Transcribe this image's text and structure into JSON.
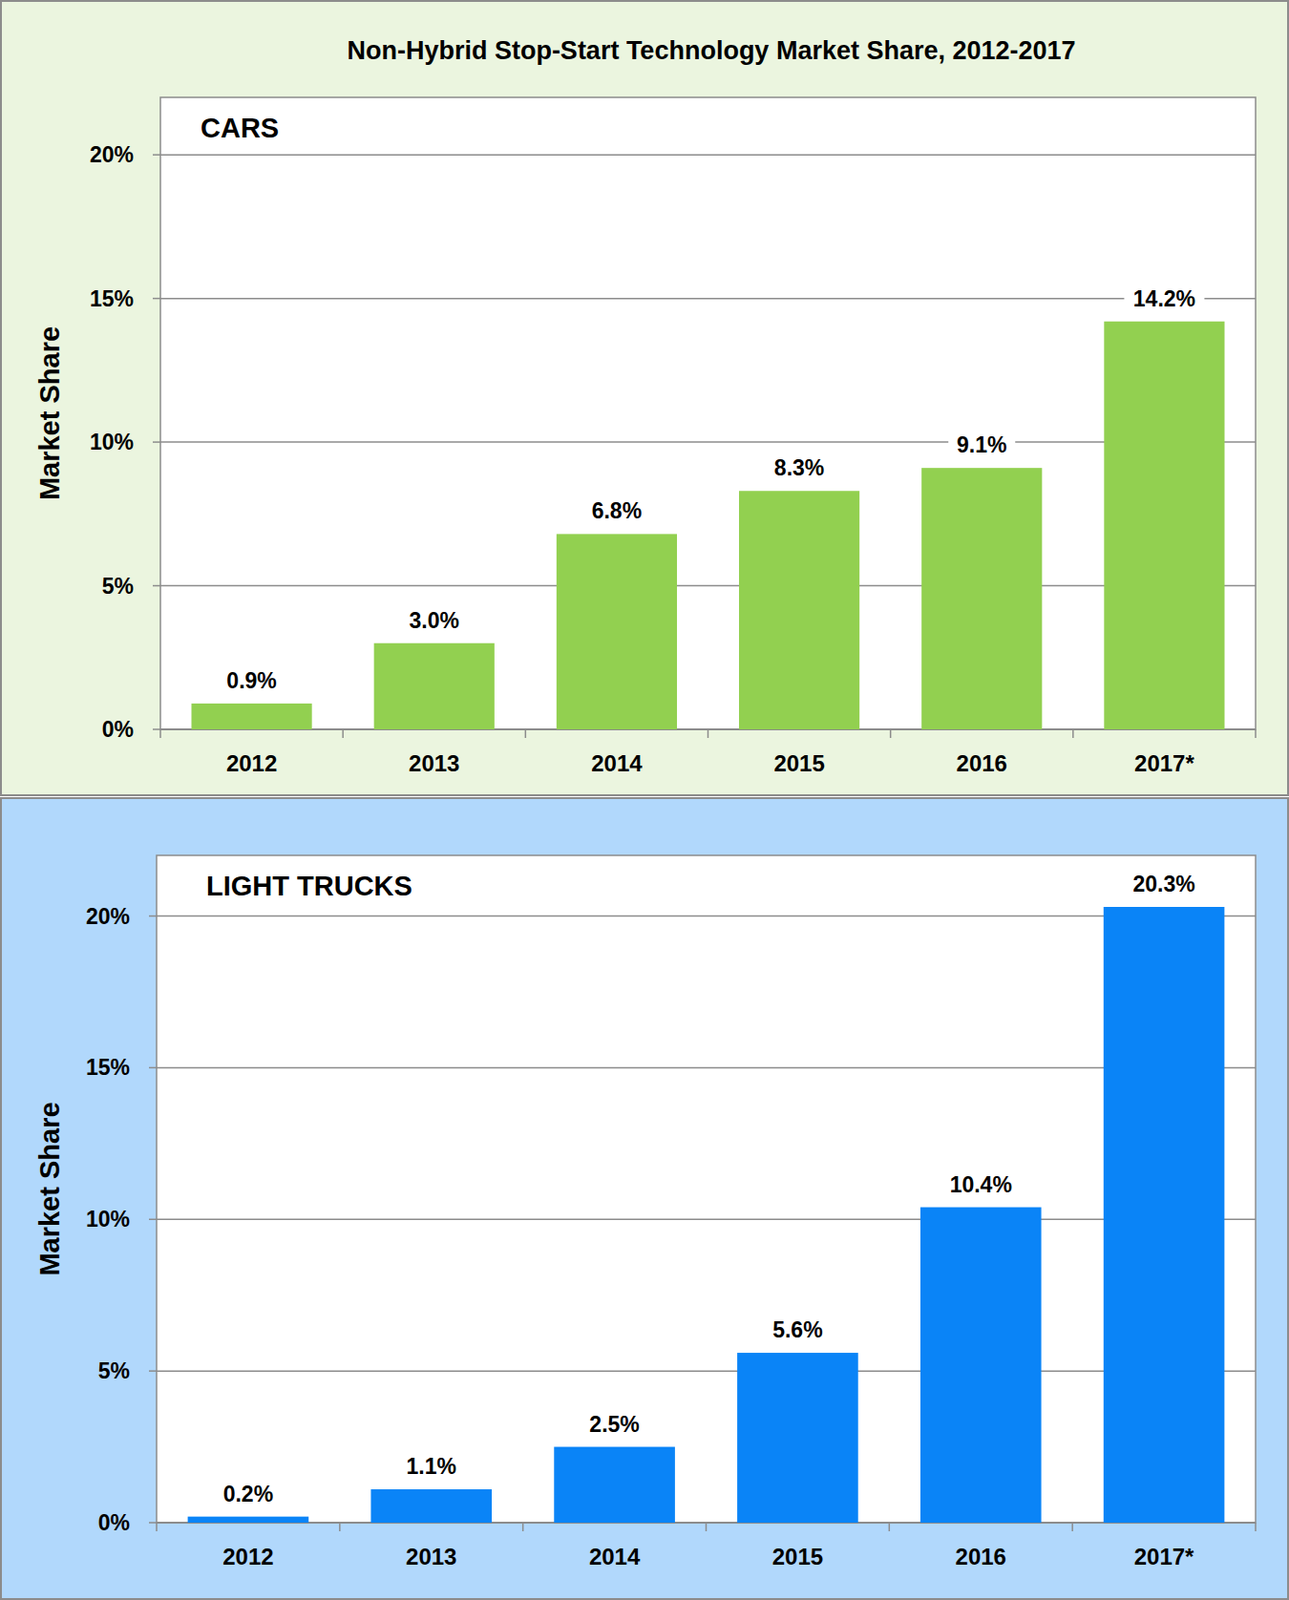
{
  "title": "Non-Hybrid Stop-Start Technology Market Share, 2012-2017",
  "chart_data": [
    {
      "type": "bar",
      "title": "CARS",
      "y_label": "Market Share",
      "categories": [
        "2012",
        "2013",
        "2014",
        "2015",
        "2016",
        "2017*"
      ],
      "values": [
        0.9,
        3.0,
        6.8,
        8.3,
        9.1,
        14.2
      ],
      "value_labels": [
        "0.9%",
        "3.0%",
        "6.8%",
        "8.3%",
        "9.1%",
        "14.2%"
      ],
      "color": "#92d050",
      "ylim": [
        0,
        22
      ],
      "yticks": [
        {
          "value": 0,
          "label": "0%"
        },
        {
          "value": 5,
          "label": "5%"
        },
        {
          "value": 10,
          "label": "10%"
        },
        {
          "value": 15,
          "label": "15%"
        },
        {
          "value": 20,
          "label": "20%"
        }
      ],
      "grid": true,
      "data_labels": true
    },
    {
      "type": "bar",
      "title": "LIGHT TRUCKS",
      "y_label": "Market Share",
      "categories": [
        "2012",
        "2013",
        "2014",
        "2015",
        "2016",
        "2017*"
      ],
      "values": [
        0.2,
        1.1,
        2.5,
        5.6,
        10.4,
        20.3
      ],
      "value_labels": [
        "0.2%",
        "1.1%",
        "2.5%",
        "5.6%",
        "10.4%",
        "20.3%"
      ],
      "color": "#0a84f7",
      "ylim": [
        0,
        22
      ],
      "yticks": [
        {
          "value": 0,
          "label": "0%"
        },
        {
          "value": 5,
          "label": "5%"
        },
        {
          "value": 10,
          "label": "10%"
        },
        {
          "value": 15,
          "label": "15%"
        },
        {
          "value": 20,
          "label": "20%"
        }
      ],
      "grid": true,
      "data_labels": true
    }
  ]
}
